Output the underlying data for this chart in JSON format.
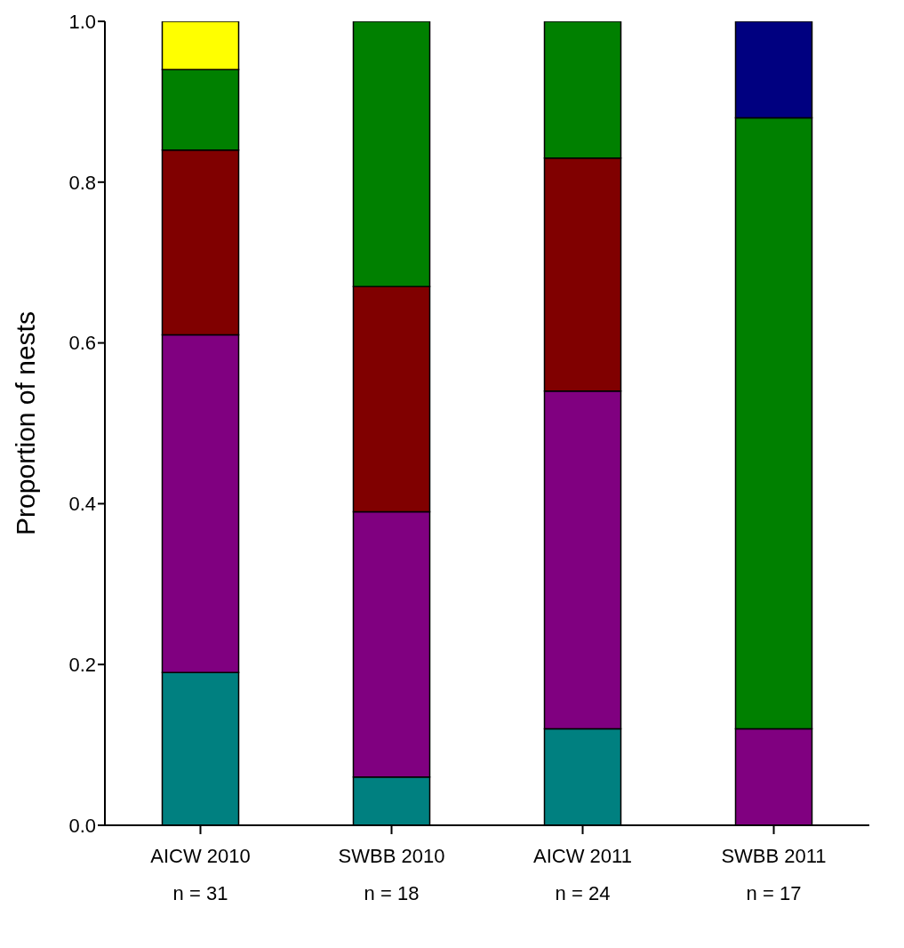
{
  "chart_data": {
    "type": "bar",
    "stacked": true,
    "ylabel": "Proportion of nests",
    "categories": [
      "AICW 2010\nn = 31",
      "SWBB 2010\nn = 18",
      "AICW 2011\nn = 24",
      "SWBB 2011\nn = 17"
    ],
    "series": [
      {
        "color": "#008080",
        "values": [
          0.19,
          0.06,
          0.12,
          null
        ]
      },
      {
        "color": "#800080",
        "values": [
          0.42,
          0.33,
          0.42,
          0.12
        ]
      },
      {
        "color": "#800000",
        "values": [
          0.23,
          0.28,
          0.29,
          null
        ]
      },
      {
        "color": "#008000",
        "values": [
          0.1,
          0.33,
          0.17,
          0.76
        ]
      },
      {
        "color": "#ffff00",
        "values": [
          0.06,
          null,
          null,
          null
        ]
      },
      {
        "color": "#000080",
        "values": [
          null,
          null,
          null,
          0.12
        ]
      }
    ],
    "ylim": [
      0,
      1
    ],
    "yticks": [
      {
        "value": 0,
        "label": "0.0"
      },
      {
        "value": 0.2,
        "label": "0.2"
      },
      {
        "value": 0.4,
        "label": "0.4"
      },
      {
        "value": 0.6,
        "label": "0.6"
      },
      {
        "value": 0.8,
        "label": "0.8"
      },
      {
        "value": 1,
        "label": "1.0"
      }
    ],
    "grid": false,
    "legend": false
  }
}
